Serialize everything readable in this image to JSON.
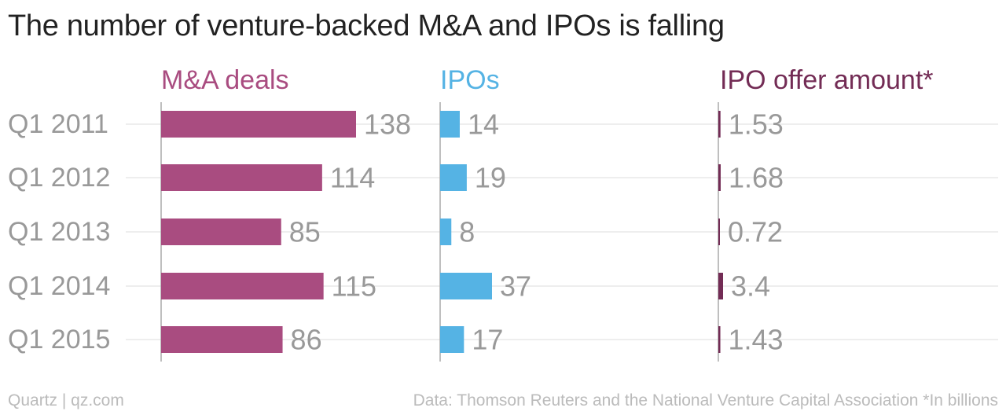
{
  "title": "The number of venture-backed M&A and IPOs is falling",
  "footer": {
    "source": "Quartz | qz.com",
    "note": "Data: Thomson Reuters and the National Venture Capital Association *In billions"
  },
  "colors": {
    "ma": "#a94c80",
    "ipo": "#55b3e4",
    "offer": "#732c55",
    "label": "#999999",
    "grid": "#e8e8e8",
    "axis": "#aaaaaa"
  },
  "chart_data": {
    "type": "bar",
    "categories": [
      "Q1 2011",
      "Q1 2012",
      "Q1 2013",
      "Q1 2014",
      "Q1 2015"
    ],
    "series": [
      {
        "name": "M&A deals",
        "key": "ma",
        "values": [
          138,
          114,
          85,
          115,
          86
        ],
        "labels": [
          "138",
          "114",
          "85",
          "115",
          "86"
        ]
      },
      {
        "name": "IPOs",
        "key": "ipo",
        "values": [
          14,
          19,
          8,
          37,
          17
        ],
        "labels": [
          "14",
          "19",
          "8",
          "37",
          "17"
        ]
      },
      {
        "name": "IPO offer amount*",
        "key": "offer",
        "values": [
          1.53,
          1.68,
          0.72,
          3.4,
          1.43
        ],
        "labels": [
          "1.53",
          "1.68",
          "0.72",
          "3.4",
          "1.43"
        ]
      }
    ],
    "grid": true,
    "legend": "column headers"
  }
}
